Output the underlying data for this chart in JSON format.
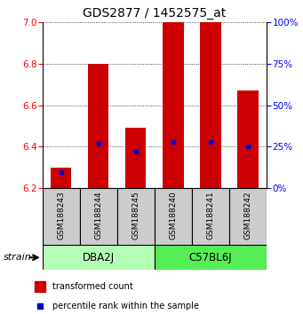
{
  "title": "GDS2877 / 1452575_at",
  "samples": [
    "GSM188243",
    "GSM188244",
    "GSM188245",
    "GSM188240",
    "GSM188241",
    "GSM188242"
  ],
  "transformed_counts": [
    6.3,
    6.8,
    6.49,
    7.0,
    7.0,
    6.67
  ],
  "percentile_ranks": [
    10,
    27,
    22,
    28,
    28,
    25
  ],
  "baseline": 6.2,
  "ylim_left": [
    6.2,
    7.0
  ],
  "ylim_right": [
    0,
    100
  ],
  "yticks_left": [
    6.2,
    6.4,
    6.6,
    6.8,
    7.0
  ],
  "yticks_right": [
    0,
    25,
    50,
    75,
    100
  ],
  "groups": [
    {
      "label": "DBA2J",
      "indices": [
        0,
        1,
        2
      ],
      "color": "#b3ffb3"
    },
    {
      "label": "C57BL6J",
      "indices": [
        3,
        4,
        5
      ],
      "color": "#55ee55"
    }
  ],
  "bar_color": "#cc0000",
  "marker_color": "#0000cc",
  "bar_width": 0.55,
  "sample_box_color": "#cccccc",
  "title_fontsize": 10,
  "tick_fontsize": 7.5,
  "label_fontsize": 6.5,
  "group_fontsize": 8.5,
  "legend_fontsize": 7,
  "strain_fontsize": 8
}
